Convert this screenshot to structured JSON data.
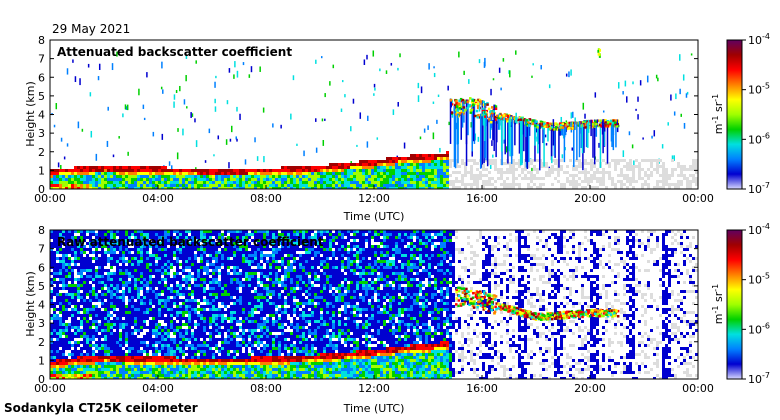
{
  "header": {
    "date": "29 May 2021"
  },
  "footer": {
    "instrument": "Sodankyla CT25K ceilometer"
  },
  "colors": {
    "colormap": [
      "#d8d8ff",
      "#0000d0",
      "#0080ff",
      "#00e0e0",
      "#00d000",
      "#a0ff00",
      "#ffff00",
      "#ff8000",
      "#ff0000",
      "#a00000",
      "#600060"
    ],
    "background_noise": "#dddddd"
  },
  "chart_data": [
    {
      "type": "heatmap",
      "title": "Attenuated backscatter coefficient",
      "xlabel": "Time (UTC)",
      "ylabel": "Height (km)",
      "x_tick_labels": [
        "00:00",
        "04:00",
        "08:00",
        "12:00",
        "16:00",
        "20:00",
        "00:00"
      ],
      "x_range_hours": [
        0,
        24
      ],
      "y_tick_labels": [
        "0",
        "1",
        "2",
        "3",
        "4",
        "5",
        "6",
        "7",
        "8"
      ],
      "ylim": [
        0,
        8
      ],
      "colorbar": {
        "tick_labels": [
          "10-7",
          "10-6",
          "10-5",
          "10-4"
        ],
        "scale": "log",
        "range": [
          1e-07,
          0.0001
        ],
        "unit": "m-1 sr-1"
      },
      "features": [
        {
          "kind": "boundary_layer_top",
          "points": [
            [
              0.0,
              1.0
            ],
            [
              1.0,
              1.1
            ],
            [
              2.0,
              1.2
            ],
            [
              3.0,
              1.1
            ],
            [
              4.0,
              1.1
            ],
            [
              6.0,
              1.0
            ],
            [
              8.0,
              1.05
            ],
            [
              10.0,
              1.2
            ],
            [
              12.0,
              1.5
            ],
            [
              13.0,
              1.7
            ],
            [
              14.0,
              1.8
            ],
            [
              14.7,
              1.9
            ]
          ]
        },
        {
          "kind": "cloud_layer",
          "points": [
            [
              14.8,
              4.4
            ],
            [
              15.5,
              4.5
            ],
            [
              16.0,
              4.3
            ],
            [
              16.5,
              4.0
            ],
            [
              17.5,
              3.7
            ],
            [
              18.5,
              3.4
            ],
            [
              19.5,
              3.5
            ],
            [
              20.5,
              3.6
            ],
            [
              21.0,
              3.6
            ]
          ]
        },
        {
          "kind": "high_cloud",
          "points": [
            [
              20.3,
              7.4
            ]
          ]
        }
      ]
    },
    {
      "type": "heatmap",
      "title": "Raw attenuated backscatter coefficient",
      "xlabel": "Time (UTC)",
      "ylabel": "Height (km)",
      "x_tick_labels": [
        "00:00",
        "04:00",
        "08:00",
        "12:00",
        "16:00",
        "20:00",
        "00:00"
      ],
      "x_range_hours": [
        0,
        24
      ],
      "y_tick_labels": [
        "0",
        "1",
        "2",
        "3",
        "4",
        "5",
        "6",
        "7",
        "8"
      ],
      "ylim": [
        0,
        8
      ],
      "colorbar": {
        "tick_labels": [
          "10-7",
          "10-6",
          "10-5",
          "10-4"
        ],
        "scale": "log",
        "range": [
          1e-07,
          0.0001
        ],
        "unit": "m-1 sr-1"
      },
      "features": [
        {
          "kind": "boundary_layer_top",
          "points": [
            [
              0.0,
              0.9
            ],
            [
              1.0,
              1.1
            ],
            [
              2.0,
              1.2
            ],
            [
              4.0,
              1.1
            ],
            [
              6.0,
              1.05
            ],
            [
              8.0,
              1.1
            ],
            [
              10.0,
              1.25
            ],
            [
              12.0,
              1.5
            ],
            [
              13.0,
              1.7
            ],
            [
              14.0,
              1.8
            ],
            [
              14.7,
              1.95
            ]
          ]
        },
        {
          "kind": "cloud_layer",
          "points": [
            [
              15.0,
              4.5
            ],
            [
              16.0,
              4.3
            ],
            [
              17.0,
              3.8
            ],
            [
              18.0,
              3.4
            ],
            [
              19.0,
              3.5
            ],
            [
              20.0,
              3.6
            ],
            [
              21.0,
              3.6
            ]
          ]
        }
      ]
    }
  ]
}
